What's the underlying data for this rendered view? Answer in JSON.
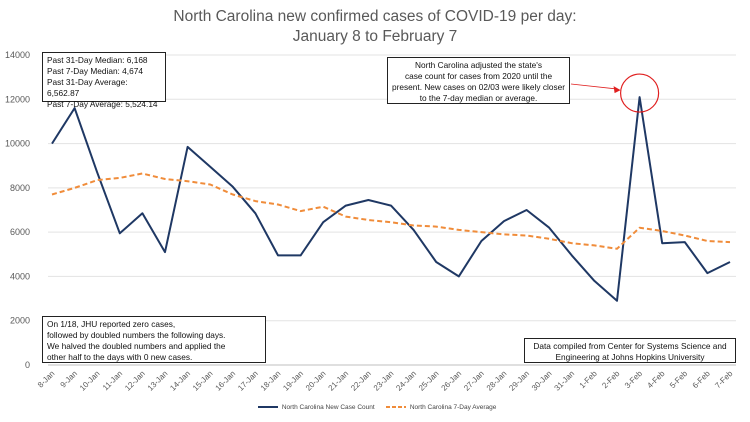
{
  "chart_data": {
    "type": "line",
    "title_line1": "North Carolina new confirmed cases of COVID-19 per day:",
    "title_line2": "January 8 to February 7",
    "categories": [
      "8-Jan",
      "9-Jan",
      "10-Jan",
      "11-Jan",
      "12-Jan",
      "13-Jan",
      "14-Jan",
      "15-Jan",
      "16-Jan",
      "17-Jan",
      "18-Jan",
      "19-Jan",
      "20-Jan",
      "21-Jan",
      "22-Jan",
      "23-Jan",
      "24-Jan",
      "25-Jan",
      "26-Jan",
      "27-Jan",
      "28-Jan",
      "29-Jan",
      "30-Jan",
      "31-Jan",
      "1-Feb",
      "2-Feb",
      "3-Feb",
      "4-Feb",
      "5-Feb",
      "6-Feb",
      "7-Feb"
    ],
    "series": [
      {
        "name": "North Carolina New Case Count",
        "color": "#1f3864",
        "style": "solid",
        "values": [
          10000,
          11600,
          8700,
          5950,
          6850,
          5100,
          9850,
          8950,
          8050,
          6850,
          4950,
          4950,
          6450,
          7200,
          7450,
          7200,
          6100,
          4650,
          4000,
          5600,
          6500,
          7000,
          6200,
          4950,
          3800,
          2900,
          12100,
          5500,
          5550,
          4150,
          4650
        ]
      },
      {
        "name": "North Carolina 7-Day Average",
        "color": "#f08c3a",
        "style": "dashed",
        "values": [
          7700,
          8000,
          8350,
          8450,
          8650,
          8400,
          8300,
          8150,
          7700,
          7400,
          7250,
          6950,
          7150,
          6700,
          6550,
          6450,
          6300,
          6250,
          6100,
          6000,
          5900,
          5850,
          5700,
          5500,
          5400,
          5250,
          6200,
          6050,
          5850,
          5600,
          5550
        ]
      }
    ],
    "ylim": [
      0,
      14000
    ],
    "yticks": [
      "0",
      "2000",
      "4000",
      "6000",
      "8000",
      "10000",
      "12000",
      "14000"
    ],
    "grid": "horizontal",
    "legend_position": "bottom",
    "annotations": {
      "stats": [
        "Past 31-Day Median: 6,168",
        "Past 7-Day Median: 4,674",
        "Past 31-Day Average: 6,562.87",
        "Past 7-Day Average: 5,524.14"
      ],
      "adjustment_note": [
        "North Carolina adjusted the state's",
        "case count for cases from 2020 until the",
        "present. New cases on 02/03 were likely closer",
        "to the 7-day median or average."
      ],
      "jhu_note": [
        "On 1/18, JHU reported zero cases,",
        "followed by doubled numbers the following days.",
        "We halved the doubled numbers and applied the",
        "other half to the days with 0 new cases."
      ],
      "source": [
        "Data compiled from Center for Systems Science and",
        "Engineering at Johns Hopkins University"
      ]
    },
    "highlight_color": "#e02020",
    "highlight_index": 26
  }
}
